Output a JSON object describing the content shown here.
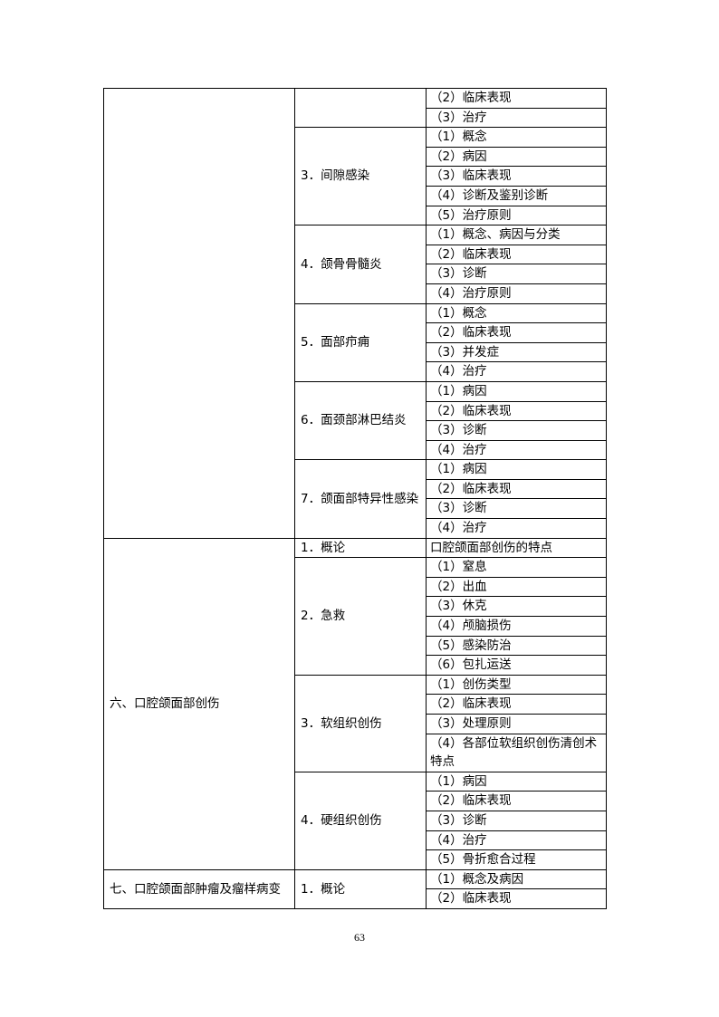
{
  "sections": [
    {
      "title": "",
      "topics": [
        {
          "title": "",
          "items": [
            "（2）临床表现",
            "（3）治疗"
          ]
        },
        {
          "title": "3．间隙感染",
          "items": [
            "（1）概念",
            "（2）病因",
            "（3）临床表现",
            "（4）诊断及鉴别诊断",
            "（5）治疗原则"
          ]
        },
        {
          "title": "4．颌骨骨髓炎",
          "items": [
            "（1）概念、病因与分类",
            "（2）临床表现",
            "（3）诊断",
            "（4）治疗原则"
          ]
        },
        {
          "title": "5．面部疖痈",
          "items": [
            "（1）概念",
            "（2）临床表现",
            "（3）并发症",
            "（4）治疗"
          ]
        },
        {
          "title": "6．面颈部淋巴结炎",
          "items": [
            "（1）病因",
            "（2）临床表现",
            "（3）诊断",
            "（4）治疗"
          ]
        },
        {
          "title": "7．颌面部特异性感染",
          "items": [
            "（1）病因",
            "（2）临床表现",
            "（3）诊断",
            "（4）治疗"
          ]
        }
      ]
    },
    {
      "title": "六、口腔颌面部创伤",
      "topics": [
        {
          "title": "1．概论",
          "items": [
            "口腔颌面部创伤的特点"
          ]
        },
        {
          "title": "2．急救",
          "items": [
            "（1）窒息",
            "（2）出血",
            "（3）休克",
            "（4）颅脑损伤",
            "（5）感染防治",
            "（6）包扎运送"
          ]
        },
        {
          "title": "3．软组织创伤",
          "items": [
            "（1）创伤类型",
            "（2）临床表现",
            "（3）处理原则",
            "（4）各部位软组织创伤清创术特点"
          ]
        },
        {
          "title": "4．硬组织创伤",
          "items": [
            "（1）病因",
            "（2）临床表现",
            "（3）诊断",
            "（4）治疗",
            "（5）骨折愈合过程"
          ]
        }
      ]
    },
    {
      "title": "七、口腔颌面部肿瘤及瘤样病变",
      "topics": [
        {
          "title": "1．概论",
          "items": [
            "（1）概念及病因",
            "（2）临床表现"
          ]
        }
      ]
    }
  ],
  "page_number": "63"
}
